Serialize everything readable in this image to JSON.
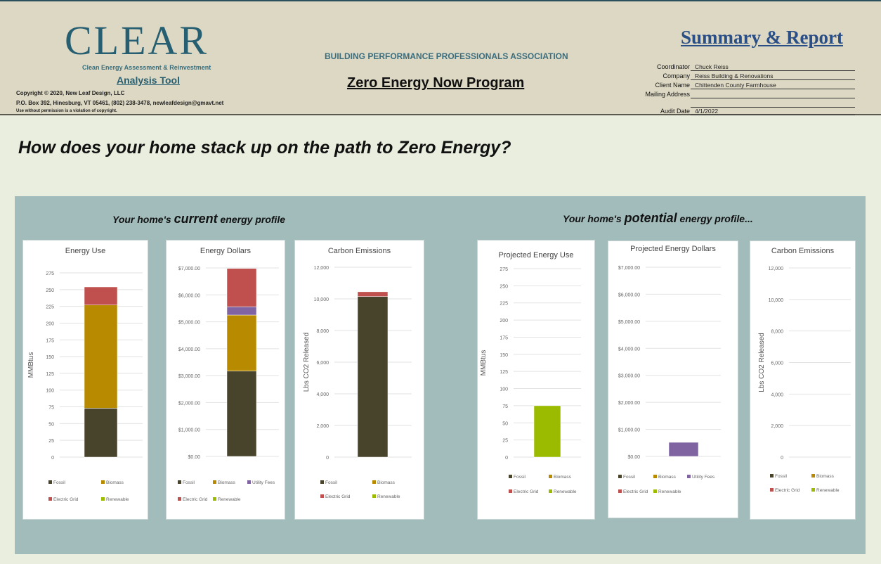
{
  "header": {
    "logo": "CLEAR",
    "logo_subtitle": "Clean Energy Assessment & Reinvestment",
    "tool_name": "Analysis Tool",
    "copyright": "Copyright © 2020, New Leaf Design, LLC",
    "address": "P.O. Box 392, Hinesburg, VT  05461, (802) 238-3478, newleafdesign@gmavt.net",
    "notice": "Use without permission is a violation of copyright.",
    "association": "BUILDING PERFORMANCE PROFESSIONALS ASSOCIATION",
    "program": "Zero Energy Now Program",
    "report_title": "Summary & Report",
    "fields": [
      {
        "label": "Coordinator",
        "value": "Chuck Reiss"
      },
      {
        "label": "Company",
        "value": "Reiss Building & Renovations"
      },
      {
        "label": "Client Name",
        "value": "Chittenden County Farmhouse"
      },
      {
        "label": "Mailing Address",
        "value": ""
      },
      {
        "label": "",
        "value": ""
      },
      {
        "label": "Audit Date",
        "value": "4/1/2022"
      }
    ]
  },
  "question": "How does your home stack up on the path to Zero Energy?",
  "current": {
    "prefix": "Your home's ",
    "emph": "current",
    "suffix": " energy profile"
  },
  "potential": {
    "prefix": "Your home's ",
    "emph": "potential",
    "suffix": " energy profile..."
  },
  "colors": {
    "Fossil": "#48432b",
    "Biomass": "#b88a00",
    "Utility Fees": "#8064a2",
    "Electric Grid": "#c0504d",
    "Renewable": "#9bbb00"
  },
  "chart_data": [
    {
      "type": "bar",
      "stacked": true,
      "title": "Energy Use",
      "ylabel": "MMBtus",
      "ylim": [
        0,
        275
      ],
      "yticks": [
        "0",
        "25",
        "50",
        "75",
        "100",
        "125",
        "150",
        "175",
        "200",
        "225",
        "250",
        "275"
      ],
      "series": [
        {
          "name": "Fossil",
          "values": [
            73
          ]
        },
        {
          "name": "Biomass",
          "values": [
            154
          ]
        },
        {
          "name": "Electric Grid",
          "values": [
            27
          ]
        },
        {
          "name": "Renewable",
          "values": [
            0
          ]
        }
      ],
      "grid": true,
      "legend": "bottom"
    },
    {
      "type": "bar",
      "stacked": true,
      "title": "Energy Dollars",
      "ylabel": "",
      "ylim": [
        0,
        7000
      ],
      "yticks": [
        "$0.00",
        "$1,000.00",
        "$2,000.00",
        "$3,000.00",
        "$4,000.00",
        "$5,000.00",
        "$6,000.00",
        "$7,000.00"
      ],
      "series": [
        {
          "name": "Fossil",
          "values": [
            3170
          ]
        },
        {
          "name": "Biomass",
          "values": [
            2080
          ]
        },
        {
          "name": "Utility Fees",
          "values": [
            310
          ]
        },
        {
          "name": "Electric Grid",
          "values": [
            1420
          ]
        },
        {
          "name": "Renewable",
          "values": [
            0
          ]
        }
      ],
      "grid": true,
      "legend": "bottom"
    },
    {
      "type": "bar",
      "stacked": true,
      "title": "Carbon Emissions",
      "ylabel": "Lbs CO2 Released",
      "ylim": [
        0,
        12000
      ],
      "yticks": [
        "0",
        "2,000",
        "4,000",
        "6,000",
        "8,000",
        "10,000",
        "12,000"
      ],
      "series": [
        {
          "name": "Fossil",
          "values": [
            10150
          ]
        },
        {
          "name": "Biomass",
          "values": [
            0
          ]
        },
        {
          "name": "Electric Grid",
          "values": [
            300
          ]
        },
        {
          "name": "Renewable",
          "values": [
            0
          ]
        }
      ],
      "grid": true,
      "legend": "bottom"
    },
    {
      "type": "bar",
      "stacked": true,
      "title": "Projected Energy Use",
      "ylabel": "MMBtus",
      "ylim": [
        0,
        275
      ],
      "yticks": [
        "0",
        "25",
        "50",
        "75",
        "100",
        "125",
        "150",
        "175",
        "200",
        "225",
        "250",
        "275"
      ],
      "series": [
        {
          "name": "Fossil",
          "values": [
            0
          ]
        },
        {
          "name": "Biomass",
          "values": [
            0
          ]
        },
        {
          "name": "Electric Grid",
          "values": [
            0
          ]
        },
        {
          "name": "Renewable",
          "values": [
            75
          ]
        }
      ],
      "grid": true,
      "legend": "bottom"
    },
    {
      "type": "bar",
      "stacked": true,
      "title": "Projected Energy Dollars",
      "ylabel": "",
      "ylim": [
        0,
        7000
      ],
      "yticks": [
        "$0.00",
        "$1,000.00",
        "$2,000.00",
        "$3,000.00",
        "$4,000.00",
        "$5,000.00",
        "$6,000.00",
        "$7,000.00"
      ],
      "series": [
        {
          "name": "Fossil",
          "values": [
            0
          ]
        },
        {
          "name": "Biomass",
          "values": [
            0
          ]
        },
        {
          "name": "Utility Fees",
          "values": [
            520
          ]
        },
        {
          "name": "Electric Grid",
          "values": [
            0
          ]
        },
        {
          "name": "Renewable",
          "values": [
            0
          ]
        }
      ],
      "grid": true,
      "legend": "bottom"
    },
    {
      "type": "bar",
      "stacked": true,
      "title": "Carbon Emissions",
      "ylabel": "Lbs CO2 Released",
      "ylim": [
        0,
        12000
      ],
      "yticks": [
        "0",
        "2,000",
        "4,000",
        "6,000",
        "8,000",
        "10,000",
        "12,000"
      ],
      "series": [
        {
          "name": "Fossil",
          "values": [
            0
          ]
        },
        {
          "name": "Biomass",
          "values": [
            0
          ]
        },
        {
          "name": "Electric Grid",
          "values": [
            0
          ]
        },
        {
          "name": "Renewable",
          "values": [
            0
          ]
        }
      ],
      "grid": true,
      "legend": "bottom"
    }
  ]
}
